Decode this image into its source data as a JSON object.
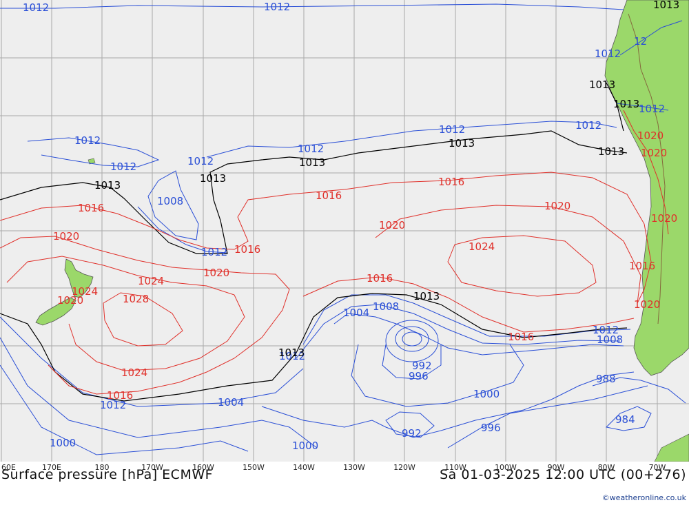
{
  "title": "Surface pressure [hPa] ECMWF",
  "datetime": "Sa 01-03-2025 12:00 UTC (00+276)",
  "credit": "©weatheronline.co.uk",
  "longitude_labels": [
    "60E",
    "170E",
    "180",
    "170W",
    "160W",
    "150W",
    "140W",
    "130W",
    "120W",
    "110W",
    "100W",
    "90W",
    "80W",
    "70W"
  ],
  "colors": {
    "ocean": "#eeeeee",
    "land": "#9bd86a",
    "grid": "#a8a8a8",
    "isobar_low": "#2a4fd6",
    "isobar_high": "#e0302a",
    "isobar_1013": "#000000"
  },
  "isobar_labels": {
    "blue": [
      "1012",
      "1012",
      "1012",
      "1012",
      "1012",
      "1012",
      "1012",
      "1012",
      "1008",
      "1012",
      "1012",
      "1008",
      "1004",
      "1012",
      "1008",
      "992",
      "996",
      "1000",
      "988",
      "984",
      "996",
      "992",
      "1004",
      "1012",
      "1000",
      "1000",
      "1012",
      "1012",
      "12"
    ],
    "black": [
      "1013",
      "1013",
      "1013",
      "1013",
      "1013",
      "1013",
      "1013",
      "1013",
      "1013",
      "1013"
    ],
    "red": [
      "1016",
      "1016",
      "1016",
      "1020",
      "1020",
      "1024",
      "1020",
      "1024",
      "1028",
      "1020",
      "1024",
      "1016",
      "1016",
      "1020",
      "1020",
      "1016",
      "1016",
      "1020",
      "1024",
      "1020",
      "1016",
      "1020"
    ]
  }
}
